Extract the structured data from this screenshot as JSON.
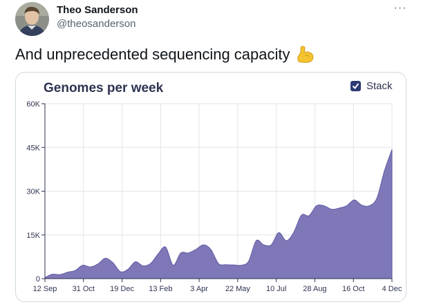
{
  "author": {
    "name": "Theo Sanderson",
    "handle": "@theosanderson"
  },
  "menu": {
    "more_label": "···"
  },
  "tweet": {
    "text": "And unprecedented sequencing capacity",
    "emoji_icon": "flexed-biceps-icon"
  },
  "chart": {
    "stack_label": "Stack",
    "stack_checked": true
  },
  "chart_data": {
    "type": "area",
    "title": "Genomes per week",
    "xlabel": "",
    "ylabel": "",
    "ylim": [
      0,
      60000
    ],
    "y_ticks": [
      "0",
      "15K",
      "30K",
      "45K",
      "60K"
    ],
    "y_tick_values": [
      0,
      15000,
      30000,
      45000,
      60000
    ],
    "x_tick_labels": [
      "12 Sep",
      "31 Oct",
      "19 Dec",
      "13 Feb",
      "3 Apr",
      "22 May",
      "10 Jul",
      "28 Aug",
      "16 Oct",
      "4 Dec"
    ],
    "grid": true,
    "color": "#7e78b8",
    "series": [
      {
        "values": [
          400,
          1500,
          1400,
          2200,
          2800,
          4600,
          4000,
          5000,
          7000,
          5500,
          2400,
          3200,
          5800,
          4400,
          5200,
          8500,
          10800,
          4600,
          8800,
          8800,
          10000,
          11600,
          10000,
          5200,
          4800,
          4700,
          4600,
          6000,
          13000,
          11600,
          11600,
          15800,
          13000,
          16000,
          21800,
          21600,
          25000,
          25000,
          23800,
          24200,
          25000,
          27000,
          25200,
          25000,
          27600,
          37000,
          44300
        ]
      }
    ]
  }
}
